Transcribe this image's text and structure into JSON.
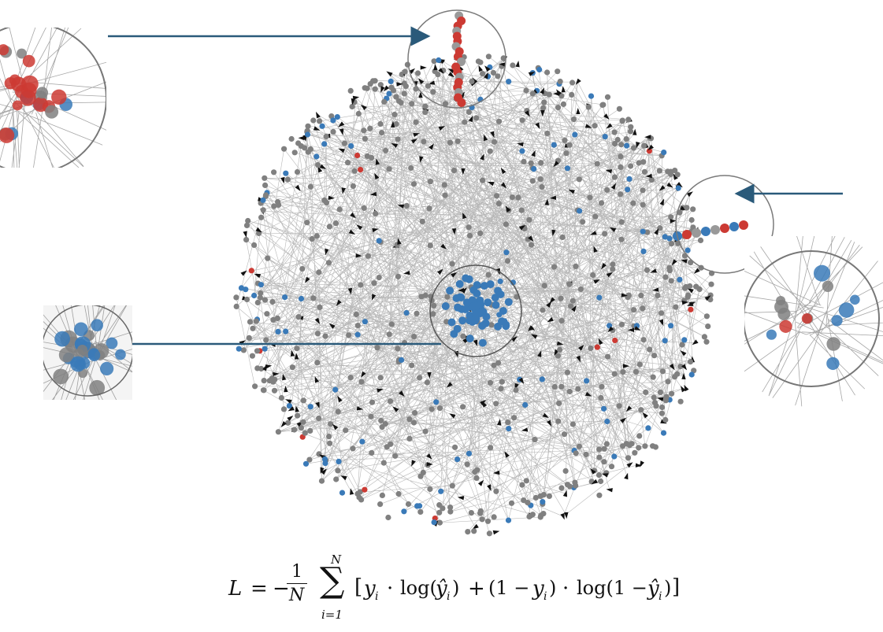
{
  "figure": {
    "kind": "directed-network-graph",
    "node_colors": {
      "default": "#808080",
      "highlight_blue": "#3a7ab8",
      "highlight_red": "#cc3a33"
    },
    "edge_color": "#000000",
    "arrow_color": "#2a5a7a",
    "zoom_circle_color": "#7a7a7a",
    "callouts": [
      {
        "name": "top-zoom",
        "content": "red-blue-cluster"
      },
      {
        "name": "right-zoom",
        "content": "red-blue-chain"
      },
      {
        "name": "center-zoom",
        "content": "blue-cluster"
      }
    ]
  },
  "formula": {
    "lhs": "L",
    "eq": "=",
    "minus": "−",
    "frac_num": "1",
    "frac_den": "N",
    "sum": "∑",
    "sum_upper": "N",
    "sum_lower": "i=1",
    "body_open": "[",
    "t1": "y",
    "t1_sub": "i",
    "dot1": "·",
    "log1": "log(",
    "yhat1": "ŷ",
    "yhat1_sub": "i",
    "close1": ")",
    "plus": "+",
    "paren2": "(1 − ",
    "y2": "y",
    "y2_sub": "i",
    "close2": ")",
    "dot2": "·",
    "log2": "log(1 − ",
    "yhat2": "ŷ",
    "yhat2_sub": "i",
    "close3": ")",
    "body_close": "]"
  }
}
